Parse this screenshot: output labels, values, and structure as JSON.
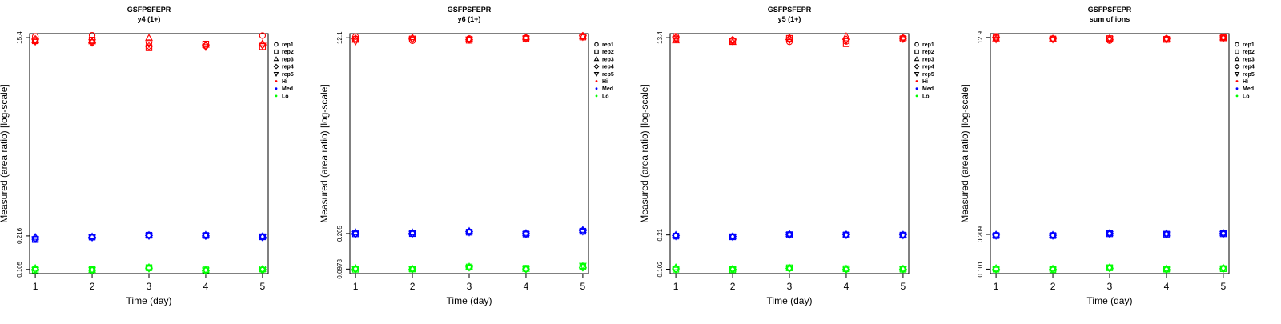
{
  "colors": {
    "Hi": "#ff0000",
    "Med": "#0000ff",
    "Lo": "#00ff00",
    "axis": "#000000"
  },
  "legend": {
    "placement": "right",
    "shape_entries": [
      {
        "label": "rep1",
        "shape": "circle"
      },
      {
        "label": "rep2",
        "shape": "square"
      },
      {
        "label": "rep3",
        "shape": "triangle-up"
      },
      {
        "label": "rep4",
        "shape": "diamond"
      },
      {
        "label": "rep5",
        "shape": "triangle-down"
      }
    ],
    "color_entries": [
      {
        "label": "Hi",
        "color": "#ff0000"
      },
      {
        "label": "Med",
        "color": "#0000ff"
      },
      {
        "label": "Lo",
        "color": "#00ff00"
      }
    ]
  },
  "chart_data": [
    {
      "type": "scatter",
      "title": "GSFPSFEPR",
      "subtitle": "y4 (1+)",
      "xlabel": "Time (day)",
      "ylabel": "Measured (area ratio) [log-scale]",
      "y_scale": "log",
      "x_ticks": [
        "1",
        "2",
        "3",
        "4",
        "5"
      ],
      "y_ticks": [
        {
          "value": 0.105,
          "label": "0.105"
        },
        {
          "value": 0.216,
          "label": "0.216"
        },
        {
          "value": 15.4,
          "label": "15.4"
        }
      ],
      "xlim": [
        0.9,
        5.1
      ],
      "ylim": [
        0.096,
        16.8
      ],
      "series": [
        {
          "name": "Hi",
          "color": "#ff0000",
          "reps": {
            "rep1": [
              15.8,
              16.2,
              13.8,
              12.9,
              16.1
            ],
            "rep2": [
              14.4,
              14.6,
              12.4,
              13.4,
              12.7
            ],
            "rep3": [
              14.5,
              14.2,
              15.3,
              13.2,
              13.6
            ],
            "rep4": [
              14.9,
              13.8,
              12.8,
              13.0,
              13.2
            ],
            "rep5": [
              14.1,
              14.0,
              13.4,
              12.6,
              13.0
            ]
          }
        },
        {
          "name": "Med",
          "color": "#0000ff",
          "reps": {
            "rep1": [
              0.203,
              0.21,
              0.22,
              0.219,
              0.213
            ],
            "rep2": [
              0.2,
              0.211,
              0.219,
              0.218,
              0.212
            ],
            "rep3": [
              0.211,
              0.213,
              0.22,
              0.221,
              0.214
            ],
            "rep4": [
              0.207,
              0.21,
              0.218,
              0.216,
              0.21
            ],
            "rep5": [
              0.202,
              0.209,
              0.216,
              0.217,
              0.211
            ]
          }
        },
        {
          "name": "Lo",
          "color": "#00ff00",
          "reps": {
            "rep1": [
              0.106,
              0.104,
              0.108,
              0.103,
              0.104
            ],
            "rep2": [
              0.104,
              0.105,
              0.109,
              0.104,
              0.106
            ],
            "rep3": [
              0.108,
              0.104,
              0.11,
              0.104,
              0.106
            ],
            "rep4": [
              0.105,
              0.103,
              0.108,
              0.102,
              0.105
            ],
            "rep5": [
              0.104,
              0.104,
              0.107,
              0.103,
              0.104
            ]
          }
        }
      ]
    },
    {
      "type": "scatter",
      "title": "GSFPSFEPR",
      "subtitle": "y6 (1+)",
      "xlabel": "Time (day)",
      "ylabel": "Measured (area ratio) [log-scale]",
      "y_scale": "log",
      "x_ticks": [
        "1",
        "2",
        "3",
        "4",
        "5"
      ],
      "y_ticks": [
        {
          "value": 0.0978,
          "label": "0.0978"
        },
        {
          "value": 0.205,
          "label": "0.205"
        },
        {
          "value": 12.1,
          "label": "12.1"
        }
      ],
      "xlim": [
        0.9,
        5.1
      ],
      "ylim": [
        0.089,
        13.2
      ],
      "series": [
        {
          "name": "Hi",
          "color": "#ff0000",
          "reps": {
            "rep1": [
              12.4,
              11.4,
              11.9,
              12.1,
              12.5
            ],
            "rep2": [
              11.7,
              11.8,
              11.5,
              11.9,
              12.3
            ],
            "rep3": [
              11.6,
              12.2,
              11.8,
              12.2,
              12.4
            ],
            "rep4": [
              11.9,
              11.9,
              11.6,
              12.0,
              12.6
            ],
            "rep5": [
              11.2,
              11.7,
              11.7,
              11.9,
              12.3
            ]
          }
        },
        {
          "name": "Med",
          "color": "#0000ff",
          "reps": {
            "rep1": [
              0.205,
              0.206,
              0.212,
              0.204,
              0.216
            ],
            "rep2": [
              0.204,
              0.205,
              0.211,
              0.203,
              0.215
            ],
            "rep3": [
              0.21,
              0.21,
              0.216,
              0.207,
              0.221
            ],
            "rep4": [
              0.205,
              0.206,
              0.213,
              0.205,
              0.218
            ],
            "rep5": [
              0.203,
              0.204,
              0.21,
              0.202,
              0.214
            ]
          }
        },
        {
          "name": "Lo",
          "color": "#00ff00",
          "reps": {
            "rep1": [
              0.0985,
              0.0978,
              0.101,
              0.0978,
              0.103
            ],
            "rep2": [
              0.0975,
              0.098,
              0.102,
              0.0993,
              0.102
            ],
            "rep3": [
              0.0998,
              0.0985,
              0.103,
              0.098,
              0.104
            ],
            "rep4": [
              0.0978,
              0.0976,
              0.102,
              0.0981,
              0.101
            ],
            "rep5": [
              0.0972,
              0.0975,
              0.101,
              0.0972,
              0.105
            ]
          }
        }
      ]
    },
    {
      "type": "scatter",
      "title": "GSFPSFEPR",
      "subtitle": "y5 (1+)",
      "xlabel": "Time (day)",
      "ylabel": "Measured (area ratio) [log-scale]",
      "y_scale": "log",
      "x_ticks": [
        "1",
        "2",
        "3",
        "4",
        "5"
      ],
      "y_ticks": [
        {
          "value": 0.102,
          "label": "0.102"
        },
        {
          "value": 0.21,
          "label": "0.21"
        },
        {
          "value": 13.4,
          "label": "13.4"
        }
      ],
      "xlim": [
        0.9,
        5.1
      ],
      "ylim": [
        0.093,
        14.6
      ],
      "series": [
        {
          "name": "Hi",
          "color": "#ff0000",
          "reps": {
            "rep1": [
              13.8,
              12.7,
              12.3,
              12.4,
              13.3
            ],
            "rep2": [
              13.1,
              12.5,
              13.2,
              11.8,
              13.1
            ],
            "rep3": [
              12.6,
              12.2,
              13.5,
              13.8,
              13.4
            ],
            "rep4": [
              13.4,
              12.8,
              12.9,
              12.9,
              13.2
            ],
            "rep5": [
              13.0,
              12.4,
              12.7,
              12.6,
              13.0
            ]
          }
        },
        {
          "name": "Med",
          "color": "#0000ff",
          "reps": {
            "rep1": [
              0.206,
              0.203,
              0.212,
              0.211,
              0.21
            ],
            "rep2": [
              0.205,
              0.202,
              0.211,
              0.21,
              0.209
            ],
            "rep3": [
              0.21,
              0.204,
              0.215,
              0.212,
              0.211
            ],
            "rep4": [
              0.207,
              0.203,
              0.212,
              0.211,
              0.21
            ],
            "rep5": [
              0.204,
              0.201,
              0.21,
              0.209,
              0.208
            ]
          }
        },
        {
          "name": "Lo",
          "color": "#00ff00",
          "reps": {
            "rep1": [
              0.103,
              0.102,
              0.104,
              0.102,
              0.103
            ],
            "rep2": [
              0.102,
              0.101,
              0.105,
              0.103,
              0.102
            ],
            "rep3": [
              0.106,
              0.103,
              0.105,
              0.103,
              0.103
            ],
            "rep4": [
              0.103,
              0.102,
              0.104,
              0.102,
              0.102
            ],
            "rep5": [
              0.101,
              0.101,
              0.103,
              0.101,
              0.102
            ]
          }
        }
      ]
    },
    {
      "type": "scatter",
      "title": "GSFPSFEPR",
      "subtitle": "sum of ions",
      "xlabel": "Time (day)",
      "ylabel": "Measured (area ratio) [log-scale]",
      "y_scale": "log",
      "x_ticks": [
        "1",
        "2",
        "3",
        "4",
        "5"
      ],
      "y_ticks": [
        {
          "value": 0.101,
          "label": "0.101"
        },
        {
          "value": 0.209,
          "label": "0.209"
        },
        {
          "value": 12.9,
          "label": "12.9"
        }
      ],
      "xlim": [
        0.9,
        5.1
      ],
      "ylim": [
        0.092,
        14.0
      ],
      "series": [
        {
          "name": "Hi",
          "color": "#ff0000",
          "reps": {
            "rep1": [
              13.2,
              12.6,
              12.1,
              12.6,
              13.1
            ],
            "rep2": [
              12.8,
              12.5,
              12.6,
              12.4,
              12.8
            ],
            "rep3": [
              12.6,
              12.6,
              12.7,
              12.6,
              12.9
            ],
            "rep4": [
              12.9,
              12.5,
              12.4,
              12.5,
              12.8
            ],
            "rep5": [
              12.4,
              12.4,
              12.5,
              12.4,
              12.7
            ]
          }
        },
        {
          "name": "Med",
          "color": "#0000ff",
          "reps": {
            "rep1": [
              0.205,
              0.205,
              0.213,
              0.211,
              0.213
            ],
            "rep2": [
              0.204,
              0.204,
              0.212,
              0.21,
              0.212
            ],
            "rep3": [
              0.208,
              0.207,
              0.215,
              0.213,
              0.216
            ],
            "rep4": [
              0.206,
              0.205,
              0.213,
              0.211,
              0.213
            ],
            "rep5": [
              0.203,
              0.203,
              0.211,
              0.209,
              0.211
            ]
          }
        },
        {
          "name": "Lo",
          "color": "#00ff00",
          "reps": {
            "rep1": [
              0.102,
              0.101,
              0.104,
              0.101,
              0.103
            ],
            "rep2": [
              0.101,
              0.1,
              0.104,
              0.101,
              0.102
            ],
            "rep3": [
              0.103,
              0.102,
              0.105,
              0.102,
              0.104
            ],
            "rep4": [
              0.101,
              0.101,
              0.103,
              0.1,
              0.102
            ],
            "rep5": [
              0.1,
              0.1,
              0.103,
              0.1,
              0.102
            ]
          }
        }
      ]
    }
  ]
}
